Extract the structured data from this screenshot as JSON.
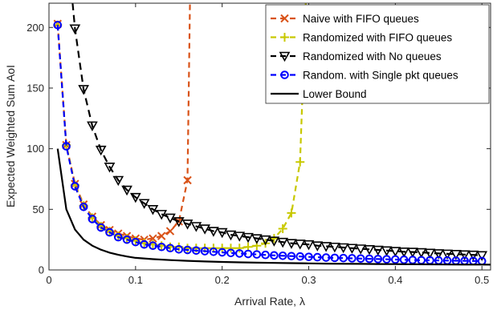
{
  "chart_data": {
    "type": "line",
    "xlabel": "Arrival Rate, λ",
    "ylabel": "Expected Weighted Sum AoI",
    "xlim": [
      0,
      0.51
    ],
    "ylim": [
      0,
      220
    ],
    "x_ticks": [
      "0",
      "0.1",
      "0.2",
      "0.3",
      "0.4",
      "0.5"
    ],
    "y_ticks": [
      "0",
      "50",
      "100",
      "150",
      "200"
    ],
    "grid": false,
    "legend_position": "top-right",
    "series": [
      {
        "name": "Naive with FIFO queues",
        "color": "#D95319",
        "marker": "x",
        "line_style": "dashed",
        "x": [
          0.01,
          0.02,
          0.03,
          0.04,
          0.05,
          0.06,
          0.07,
          0.08,
          0.09,
          0.1,
          0.11,
          0.12,
          0.13,
          0.14,
          0.15,
          0.16
        ],
        "y": [
          203,
          103,
          71,
          54,
          44,
          37,
          33,
          30,
          28,
          26,
          25,
          26,
          28,
          32,
          40,
          74
        ]
      },
      {
        "name": "Randomized with FIFO queues",
        "color": "#C8C800",
        "marker": "+",
        "line_style": "dashed",
        "x": [
          0.01,
          0.02,
          0.03,
          0.04,
          0.05,
          0.06,
          0.07,
          0.08,
          0.09,
          0.1,
          0.11,
          0.12,
          0.13,
          0.14,
          0.15,
          0.16,
          0.17,
          0.18,
          0.19,
          0.2,
          0.21,
          0.22,
          0.23,
          0.24,
          0.25,
          0.26,
          0.27,
          0.28,
          0.29
        ],
        "y": [
          202,
          103,
          70,
          53,
          43,
          36,
          32,
          28,
          26,
          24,
          22,
          21,
          20,
          19,
          19,
          18,
          18,
          18,
          18,
          18,
          18,
          18,
          19,
          20,
          22,
          26,
          34,
          47,
          89
        ]
      },
      {
        "name": "Randomized with No queues",
        "color": "#000000",
        "marker": "triangle-down",
        "line_style": "dashed",
        "x": [
          0.03,
          0.04,
          0.05,
          0.06,
          0.07,
          0.08,
          0.09,
          0.1,
          0.11,
          0.12,
          0.13,
          0.14,
          0.15,
          0.16,
          0.17,
          0.18,
          0.19,
          0.2,
          0.21,
          0.22,
          0.23,
          0.24,
          0.25,
          0.26,
          0.27,
          0.28,
          0.29,
          0.3,
          0.31,
          0.32,
          0.33,
          0.34,
          0.35,
          0.36,
          0.37,
          0.38,
          0.39,
          0.4,
          0.41,
          0.42,
          0.43,
          0.44,
          0.45,
          0.46,
          0.47,
          0.48,
          0.49,
          0.5
        ],
        "y": [
          199,
          149,
          119,
          99,
          85,
          74,
          66,
          60,
          55,
          50,
          46,
          43,
          40,
          38,
          36,
          34,
          32,
          31,
          29,
          28,
          27,
          26,
          25,
          24,
          23,
          22,
          21.5,
          21,
          20,
          19.5,
          19,
          18.5,
          18,
          17.5,
          17,
          16.5,
          16,
          15.5,
          15,
          14.8,
          14.5,
          14,
          13.6,
          13.3,
          13,
          12.7,
          12.4,
          12
        ]
      },
      {
        "name": "Random. with Single pkt queues",
        "color": "#0000FF",
        "marker": "circle",
        "line_style": "dashed",
        "x": [
          0.01,
          0.02,
          0.03,
          0.04,
          0.05,
          0.06,
          0.07,
          0.08,
          0.09,
          0.1,
          0.11,
          0.12,
          0.13,
          0.14,
          0.15,
          0.16,
          0.17,
          0.18,
          0.19,
          0.2,
          0.21,
          0.22,
          0.23,
          0.24,
          0.25,
          0.26,
          0.27,
          0.28,
          0.29,
          0.3,
          0.31,
          0.32,
          0.33,
          0.34,
          0.35,
          0.36,
          0.37,
          0.38,
          0.39,
          0.4,
          0.41,
          0.42,
          0.43,
          0.44,
          0.45,
          0.46,
          0.47,
          0.48,
          0.49,
          0.5
        ],
        "y": [
          202,
          102,
          69,
          52,
          42,
          35,
          31,
          27,
          25,
          23,
          21,
          20,
          19,
          18,
          17,
          16.5,
          16,
          15.5,
          15,
          14.5,
          14,
          13.6,
          13.2,
          12.8,
          12.4,
          12,
          11.7,
          11.4,
          11.1,
          10.8,
          10.5,
          10.2,
          10,
          9.8,
          9.6,
          9.4,
          9.2,
          9,
          8.8,
          8.6,
          8.4,
          8.2,
          8,
          7.9,
          7.8,
          7.7,
          7.6,
          7.5,
          7.4,
          7.3
        ]
      },
      {
        "name": "Lower Bound",
        "color": "#000000",
        "marker": "none",
        "line_style": "solid",
        "x": [
          0.01,
          0.02,
          0.03,
          0.04,
          0.05,
          0.06,
          0.07,
          0.08,
          0.09,
          0.1,
          0.12,
          0.14,
          0.16,
          0.18,
          0.2,
          0.22,
          0.24,
          0.26,
          0.28,
          0.3,
          0.32,
          0.34,
          0.36,
          0.38,
          0.4,
          0.42,
          0.44,
          0.46,
          0.48,
          0.5,
          0.51
        ],
        "y": [
          100,
          50,
          33.3,
          25,
          20,
          16.7,
          14.3,
          12.5,
          11.1,
          10,
          8.9,
          8.1,
          7.5,
          7,
          6.6,
          6.3,
          6,
          5.8,
          5.6,
          5.4,
          5.25,
          5.1,
          5,
          4.9,
          4.8,
          4.7,
          4.6,
          4.5,
          4.45,
          4.4,
          4.35
        ]
      }
    ]
  }
}
